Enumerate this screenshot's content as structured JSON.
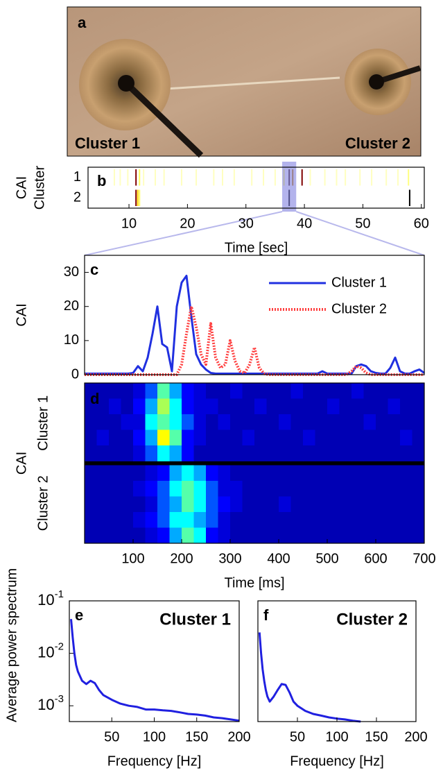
{
  "chart_data": [
    {
      "type": "image",
      "panel": "a",
      "labels": [
        {
          "text": "Cluster 1",
          "color": "#2828e8"
        },
        {
          "text": "Cluster 2",
          "color": "#ff3030"
        }
      ]
    },
    {
      "type": "event",
      "panel": "b",
      "ylabel": [
        "CAI",
        "Cluster"
      ],
      "xlabel": "Time [sec]",
      "categories": [
        "1",
        "2"
      ],
      "xlim": [
        3,
        60.5
      ],
      "xticks": [
        10,
        20,
        30,
        40,
        50,
        60
      ],
      "highlight": [
        36.2,
        38.6
      ],
      "events": [
        [
          {
            "x": 7.5,
            "color": "#ffffc0"
          },
          {
            "x": 8.5,
            "color": "#ffffc0"
          },
          {
            "x": 9.8,
            "color": "#ffffc0"
          },
          {
            "x": 11.2,
            "color": "#800000"
          },
          {
            "x": 11.8,
            "color": "#ffff60"
          },
          {
            "x": 12.5,
            "color": "#ffffc0"
          },
          {
            "x": 14.5,
            "color": "#ffffc0"
          },
          {
            "x": 16,
            "color": "#ffffc0"
          },
          {
            "x": 19,
            "color": "#ffffc0"
          },
          {
            "x": 21.5,
            "color": "#ffffc0"
          },
          {
            "x": 24.5,
            "color": "#ffffc0"
          },
          {
            "x": 26,
            "color": "#ffffc0"
          },
          {
            "x": 28,
            "color": "#ffffc0"
          },
          {
            "x": 31,
            "color": "#ffffc0"
          },
          {
            "x": 33,
            "color": "#ffffc0"
          },
          {
            "x": 35,
            "color": "#ffffc0"
          },
          {
            "x": 36.5,
            "color": "#ffff60"
          },
          {
            "x": 37.4,
            "color": "#402020"
          },
          {
            "x": 38,
            "color": "#c08000"
          },
          {
            "x": 39.6,
            "color": "#800000"
          },
          {
            "x": 41,
            "color": "#ffffc0"
          },
          {
            "x": 43.5,
            "color": "#ffffc0"
          },
          {
            "x": 45.5,
            "color": "#ffffc0"
          },
          {
            "x": 47,
            "color": "#ffffc0"
          },
          {
            "x": 49.5,
            "color": "#ffffc0"
          },
          {
            "x": 51.5,
            "color": "#ffffc0"
          },
          {
            "x": 54,
            "color": "#ffffc0"
          },
          {
            "x": 56,
            "color": "#ffffc0"
          },
          {
            "x": 57.8,
            "color": "#ffff80"
          }
        ],
        [
          {
            "x": 11.2,
            "color": "#800000"
          },
          {
            "x": 11.5,
            "color": "#ffd000"
          },
          {
            "x": 11.8,
            "color": "#ffff60"
          },
          {
            "x": 37.4,
            "color": "#000000"
          },
          {
            "x": 58,
            "color": "#000000"
          }
        ]
      ]
    },
    {
      "type": "line",
      "panel": "c",
      "ylabel": "CAI",
      "xlim": [
        0,
        700
      ],
      "ylim": [
        0,
        35
      ],
      "yticks": [
        0,
        10,
        20,
        30
      ],
      "legend": "upper right",
      "x": [
        0,
        10,
        20,
        30,
        40,
        50,
        60,
        70,
        80,
        90,
        100,
        110,
        120,
        130,
        140,
        150,
        160,
        170,
        180,
        190,
        200,
        210,
        220,
        230,
        240,
        250,
        260,
        270,
        280,
        290,
        300,
        310,
        320,
        330,
        340,
        350,
        360,
        370,
        380,
        390,
        400,
        410,
        420,
        430,
        440,
        450,
        460,
        470,
        480,
        490,
        500,
        510,
        520,
        530,
        540,
        550,
        560,
        570,
        580,
        590,
        600,
        610,
        620,
        630,
        640,
        650,
        660,
        670,
        680,
        690,
        700
      ],
      "series": [
        {
          "name": "Cluster 1",
          "color": "#2030e0",
          "style": "solid",
          "values": [
            0.3,
            0.3,
            0.3,
            0.3,
            0.3,
            0.3,
            0.3,
            0.3,
            0.3,
            0.3,
            0.5,
            2.5,
            1,
            5,
            12,
            20,
            9,
            8,
            1,
            20,
            27,
            29,
            17,
            6,
            3,
            1.5,
            0.5,
            0.3,
            0.3,
            0.3,
            0.3,
            0.3,
            0.3,
            0.3,
            0.3,
            0.3,
            0.3,
            0.3,
            0.3,
            0.3,
            0.3,
            0.3,
            0.3,
            0.3,
            0.3,
            0.3,
            0.3,
            0.3,
            0.3,
            1,
            0.3,
            0.3,
            0.3,
            0.3,
            0.3,
            0.3,
            2.5,
            3,
            2.5,
            1,
            0.5,
            0.3,
            0.3,
            2,
            5,
            1,
            0.3,
            0.3,
            1,
            1.5,
            0.5
          ]
        },
        {
          "name": "Cluster 2",
          "color": "#ff4040",
          "style": "dotted",
          "values": [
            0,
            0,
            0,
            0,
            0,
            0,
            0,
            0,
            0,
            0,
            0,
            0,
            0,
            0,
            0,
            0,
            0,
            0,
            0,
            0,
            3,
            12,
            20,
            14,
            6,
            3,
            15,
            5,
            2,
            3,
            10,
            4,
            1,
            0.5,
            3,
            8,
            2,
            0.3,
            0,
            0,
            0,
            0,
            0,
            0,
            0,
            0,
            0,
            0,
            0,
            0,
            0,
            0,
            0,
            0,
            0,
            1,
            2.5,
            2,
            0.5,
            0,
            0,
            0,
            0,
            0,
            0,
            0,
            0,
            0,
            0,
            0,
            0
          ]
        }
      ]
    },
    {
      "type": "heatmap",
      "panel": "d",
      "ylabel": "CAI",
      "row_groups": [
        "Cluster 1",
        "Cluster 2"
      ],
      "xlabel": "Time [ms]",
      "xlim": [
        0,
        700
      ],
      "xticks": [
        100,
        200,
        300,
        400,
        500,
        600,
        700
      ],
      "clim": [
        0,
        12
      ],
      "colormap": [
        "#00008f",
        "#0000ff",
        "#00ffff",
        "#ffff00",
        "#ff0000"
      ],
      "rows": [
        [
          1,
          1,
          1,
          1,
          2,
          4,
          7,
          5,
          3,
          2,
          1,
          1,
          2,
          1,
          1,
          1,
          1,
          2,
          1,
          1,
          1,
          1,
          2,
          1,
          1,
          1,
          1,
          1
        ],
        [
          1,
          1,
          2,
          1,
          3,
          5,
          8,
          6,
          3,
          2,
          2,
          1,
          1,
          1,
          2,
          1,
          1,
          1,
          1,
          1,
          2,
          1,
          1,
          1,
          1,
          2,
          1,
          1
        ],
        [
          1,
          1,
          1,
          2,
          2,
          6,
          7,
          6,
          4,
          2,
          1,
          2,
          1,
          1,
          1,
          1,
          2,
          1,
          1,
          1,
          1,
          1,
          1,
          2,
          1,
          1,
          1,
          1
        ],
        [
          1,
          2,
          1,
          1,
          3,
          5,
          9,
          7,
          3,
          2,
          1,
          1,
          1,
          2,
          1,
          1,
          1,
          1,
          2,
          1,
          1,
          1,
          1,
          1,
          1,
          1,
          2,
          1
        ],
        [
          1,
          1,
          1,
          1,
          2,
          4,
          6,
          5,
          3,
          1,
          1,
          1,
          1,
          1,
          1,
          1,
          1,
          1,
          1,
          1,
          1,
          1,
          1,
          1,
          1,
          1,
          1,
          1
        ],
        [
          1,
          1,
          1,
          1,
          1,
          2,
          3,
          5,
          6,
          5,
          3,
          2,
          1,
          1,
          1,
          1,
          1,
          1,
          1,
          1,
          1,
          1,
          1,
          1,
          1,
          1,
          1,
          1
        ],
        [
          1,
          1,
          1,
          1,
          2,
          3,
          4,
          6,
          7,
          6,
          4,
          2,
          2,
          1,
          1,
          1,
          1,
          1,
          1,
          1,
          1,
          1,
          1,
          1,
          1,
          1,
          1,
          1
        ],
        [
          1,
          1,
          1,
          1,
          1,
          2,
          4,
          5,
          7,
          6,
          4,
          3,
          2,
          1,
          1,
          1,
          2,
          1,
          1,
          1,
          1,
          1,
          1,
          1,
          1,
          1,
          1,
          1
        ],
        [
          1,
          1,
          1,
          1,
          2,
          3,
          4,
          6,
          6,
          5,
          4,
          2,
          1,
          1,
          1,
          1,
          1,
          1,
          1,
          1,
          1,
          1,
          1,
          1,
          1,
          1,
          1,
          1
        ],
        [
          1,
          1,
          1,
          1,
          1,
          2,
          3,
          5,
          7,
          6,
          3,
          2,
          1,
          1,
          1,
          1,
          1,
          1,
          1,
          1,
          1,
          1,
          1,
          1,
          1,
          1,
          1,
          1
        ]
      ]
    },
    {
      "type": "line",
      "panel": "e",
      "ylabel": "Average power spectrum",
      "xlabel": "Frequency [Hz]",
      "yscale": "log",
      "annotation": {
        "text": "Cluster 1",
        "color": "#2020e0"
      },
      "xlim": [
        0,
        200
      ],
      "xticks": [
        50,
        100,
        150,
        200
      ],
      "ylim": [
        0.0005,
        0.1
      ],
      "yticks": [
        {
          "value": 0.001,
          "label": "10",
          "exponent": "-3"
        },
        {
          "value": 0.01,
          "label": "10",
          "exponent": "-2"
        },
        {
          "value": 0.1,
          "label": "10",
          "exponent": "-1"
        }
      ],
      "x": [
        2,
        4,
        6,
        8,
        10,
        15,
        20,
        25,
        30,
        35,
        40,
        50,
        60,
        70,
        80,
        90,
        100,
        110,
        120,
        130,
        140,
        150,
        160,
        170,
        180,
        190,
        200
      ],
      "series": [
        {
          "color": "#2020e0",
          "style": "solid",
          "values": [
            0.045,
            0.02,
            0.01,
            0.006,
            0.0045,
            0.003,
            0.0026,
            0.003,
            0.0027,
            0.002,
            0.0016,
            0.0013,
            0.0011,
            0.001,
            0.00095,
            0.00085,
            0.00085,
            0.00082,
            0.0008,
            0.00075,
            0.0007,
            0.00068,
            0.00065,
            0.0006,
            0.00058,
            0.00055,
            0.00052
          ]
        }
      ]
    },
    {
      "type": "line",
      "panel": "f",
      "xlabel": "Frequency [Hz]",
      "yscale": "log",
      "annotation": {
        "text": "Cluster 2",
        "color": "#ff3030"
      },
      "xlim": [
        0,
        200
      ],
      "xticks": [
        50,
        100,
        150,
        200
      ],
      "ylim": [
        0.0005,
        0.1
      ],
      "x": [
        2,
        4,
        6,
        8,
        10,
        12,
        15,
        20,
        25,
        30,
        35,
        40,
        45,
        50,
        60,
        70,
        80,
        90,
        100,
        110,
        120,
        130
      ],
      "series": [
        {
          "color": "#2020e0",
          "style": "solid",
          "values": [
            0.025,
            0.01,
            0.005,
            0.003,
            0.002,
            0.0015,
            0.0012,
            0.0015,
            0.002,
            0.0026,
            0.0025,
            0.0018,
            0.0012,
            0.001,
            0.0008,
            0.0007,
            0.00065,
            0.0006,
            0.00057,
            0.00055,
            0.00052,
            0.0005
          ]
        }
      ]
    }
  ]
}
